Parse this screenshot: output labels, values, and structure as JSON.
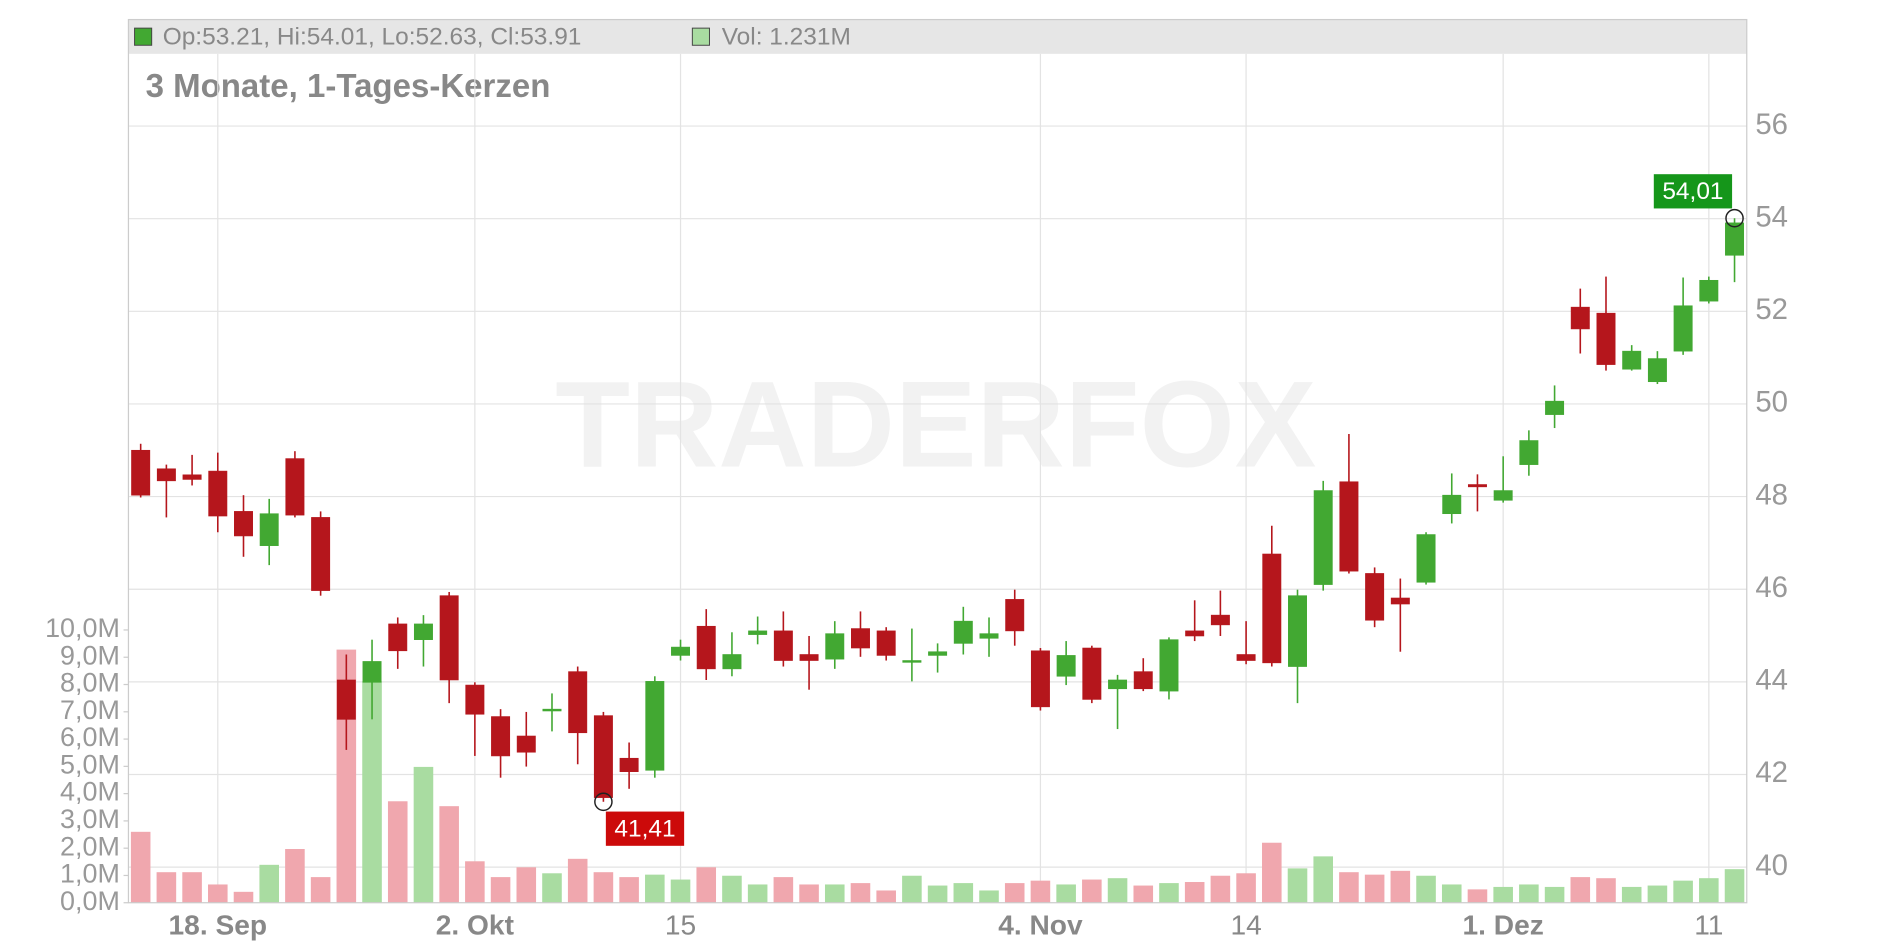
{
  "chart_data": {
    "type": "candlestick",
    "title": "3 Monate, 1-Tages-Kerzen",
    "header": {
      "ohlc": "Op:53.21, Hi:54.01, Lo:52.63, Cl:53.91",
      "volume": "Vol: 1.231M"
    },
    "watermark": "TRADERFOX",
    "categories": [
      null,
      null,
      null,
      "18. Sep",
      null,
      null,
      null,
      null,
      null,
      null,
      null,
      null,
      null,
      "2. Okt",
      null,
      null,
      null,
      null,
      null,
      null,
      null,
      "15",
      null,
      null,
      null,
      null,
      null,
      null,
      null,
      null,
      null,
      null,
      null,
      null,
      null,
      "4. Nov",
      null,
      null,
      null,
      null,
      null,
      null,
      null,
      "14",
      null,
      null,
      null,
      null,
      null,
      null,
      null,
      null,
      null,
      "1. Dez",
      null,
      null,
      null,
      null,
      null,
      null,
      null,
      "11",
      null
    ],
    "open": [
      49.0,
      48.6,
      48.47,
      48.55,
      47.68,
      46.94,
      48.82,
      47.55,
      44.04,
      43.99,
      45.25,
      44.91,
      45.86,
      43.93,
      43.25,
      42.83,
      43.39,
      44.22,
      43.27,
      42.35,
      42.09,
      44.57,
      45.2,
      44.28,
      45.02,
      45.1,
      44.59,
      44.49,
      45.15,
      45.1,
      44.44,
      44.57,
      44.83,
      44.94,
      45.78,
      44.67,
      44.12,
      44.73,
      43.85,
      44.22,
      43.8,
      45.1,
      45.44,
      44.59,
      46.76,
      44.33,
      46.1,
      48.32,
      46.34,
      45.81,
      46.15,
      47.63,
      48.26,
      47.92,
      48.69,
      49.77,
      52.09,
      51.96,
      50.75,
      50.48,
      51.14,
      52.22,
      53.21
    ],
    "high": [
      49.14,
      48.69,
      48.9,
      48.95,
      48.03,
      47.95,
      48.98,
      47.68,
      44.59,
      44.91,
      45.39,
      45.44,
      45.94,
      43.99,
      43.41,
      43.35,
      43.75,
      44.33,
      43.35,
      42.69,
      44.12,
      44.91,
      45.57,
      45.07,
      45.41,
      45.52,
      44.99,
      45.31,
      45.52,
      45.18,
      45.15,
      44.83,
      45.62,
      45.39,
      45.99,
      44.73,
      44.88,
      44.78,
      44.15,
      44.51,
      44.96,
      45.76,
      45.97,
      45.31,
      47.37,
      45.99,
      48.34,
      49.35,
      46.47,
      46.23,
      47.23,
      48.5,
      48.48,
      48.87,
      49.43,
      50.4,
      52.49,
      52.75,
      51.27,
      51.14,
      52.73,
      52.75,
      54.01
    ],
    "low": [
      47.98,
      47.55,
      48.24,
      47.23,
      46.7,
      46.52,
      47.55,
      45.86,
      42.53,
      43.19,
      44.28,
      44.33,
      43.54,
      42.4,
      41.93,
      42.17,
      42.93,
      42.22,
      41.41,
      41.69,
      41.93,
      44.46,
      44.04,
      44.12,
      44.81,
      44.33,
      43.83,
      44.28,
      44.54,
      44.46,
      44.01,
      44.2,
      44.59,
      44.54,
      44.78,
      43.38,
      43.93,
      43.54,
      42.98,
      43.8,
      43.62,
      44.88,
      44.99,
      44.38,
      44.33,
      43.54,
      45.97,
      46.34,
      45.18,
      44.65,
      46.1,
      47.42,
      47.68,
      47.87,
      48.45,
      49.48,
      51.09,
      50.72,
      50.72,
      50.43,
      51.06,
      52.17,
      52.63
    ],
    "close": [
      48.03,
      48.34,
      48.37,
      47.58,
      47.15,
      47.63,
      47.6,
      45.97,
      43.19,
      44.44,
      44.67,
      45.25,
      44.04,
      43.3,
      42.4,
      42.48,
      43.41,
      42.9,
      41.5,
      42.06,
      44.01,
      44.75,
      44.28,
      44.59,
      45.1,
      44.46,
      44.46,
      45.04,
      44.73,
      44.57,
      44.46,
      44.65,
      45.31,
      45.04,
      45.1,
      43.46,
      44.57,
      43.62,
      44.04,
      43.85,
      44.91,
      44.99,
      45.23,
      44.46,
      44.41,
      45.86,
      48.13,
      46.39,
      45.33,
      45.68,
      47.18,
      48.03,
      48.21,
      48.13,
      49.21,
      50.06,
      51.62,
      50.85,
      51.14,
      50.98,
      52.12,
      52.67,
      53.91
    ],
    "volume": [
      2.6,
      1.12,
      1.12,
      0.67,
      0.4,
      1.39,
      1.97,
      0.94,
      9.28,
      8.12,
      3.72,
      4.98,
      3.54,
      1.52,
      0.94,
      1.3,
      1.08,
      1.61,
      1.12,
      0.94,
      1.03,
      0.85,
      1.3,
      0.99,
      0.67,
      0.94,
      0.67,
      0.67,
      0.72,
      0.45,
      0.99,
      0.63,
      0.72,
      0.45,
      0.72,
      0.81,
      0.67,
      0.85,
      0.9,
      0.63,
      0.72,
      0.76,
      0.99,
      1.08,
      2.2,
      1.26,
      1.7,
      1.12,
      1.03,
      1.17,
      0.99,
      0.67,
      0.49,
      0.58,
      0.67,
      0.58,
      0.94,
      0.9,
      0.58,
      0.63,
      0.81,
      0.9,
      1.231
    ],
    "ylim": [
      39.23,
      57.56
    ],
    "yticks": [
      40,
      42,
      44,
      46,
      48,
      50,
      52,
      54,
      56
    ],
    "volume_ylim": [
      0,
      10
    ],
    "volume_ticks": [
      {
        "value": 0,
        "label": "0,0M"
      },
      {
        "value": 1,
        "label": "1,0M"
      },
      {
        "value": 2,
        "label": "2,0M"
      },
      {
        "value": 3,
        "label": "3,0M"
      },
      {
        "value": 4,
        "label": "4,0M"
      },
      {
        "value": 5,
        "label": "5,0M"
      },
      {
        "value": 6,
        "label": "6,0M"
      },
      {
        "value": 7,
        "label": "7,0M"
      },
      {
        "value": 8,
        "label": "8,0M"
      },
      {
        "value": 9,
        "label": "9,0M"
      },
      {
        "value": 10,
        "label": "10,0M"
      }
    ],
    "annotations": [
      {
        "value": 54.01,
        "label": "54,01",
        "color": "#15961a"
      },
      {
        "value": 41.41,
        "label": "41,41",
        "color": "#cc0a0a"
      }
    ],
    "up_color": "#42a832",
    "down_color": "#b5161c",
    "volume_up_color": "#a9dca1",
    "volume_down_color": "#f0a7ae",
    "grid": true
  }
}
